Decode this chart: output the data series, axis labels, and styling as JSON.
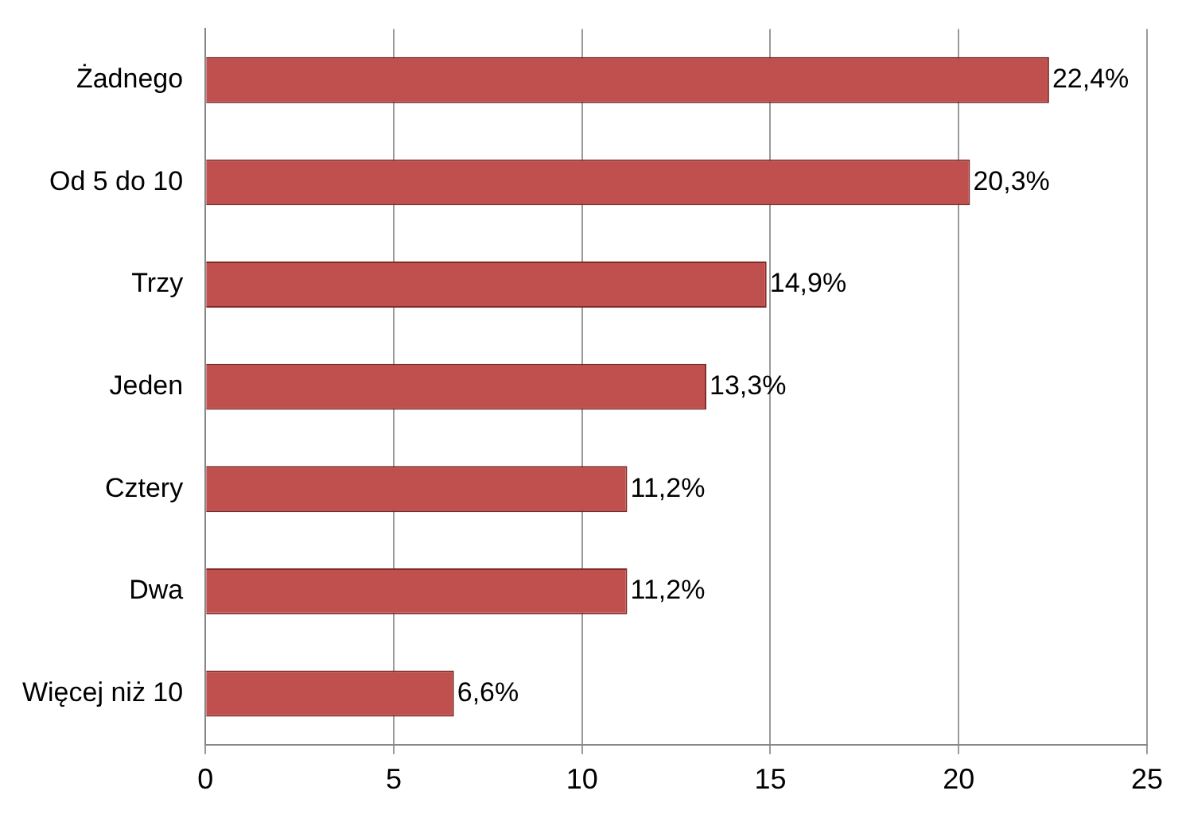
{
  "chart_data": {
    "type": "bar",
    "orientation": "horizontal",
    "categories": [
      "Żadnego",
      "Od 5 do 10",
      "Trzy",
      "Jeden",
      "Cztery",
      "Dwa",
      "Więcej niż 10"
    ],
    "values": [
      22.4,
      20.3,
      14.9,
      13.3,
      11.2,
      11.2,
      6.6
    ],
    "value_labels": [
      "22,4%",
      "20,3%",
      "14,9%",
      "13,3%",
      "11,2%",
      "11,2%",
      "6,6%"
    ],
    "color": "#c0504d",
    "xlim": [
      0,
      25
    ],
    "xticks": [
      0,
      5,
      10,
      15,
      20,
      25
    ],
    "grid": "x",
    "legend": false
  }
}
